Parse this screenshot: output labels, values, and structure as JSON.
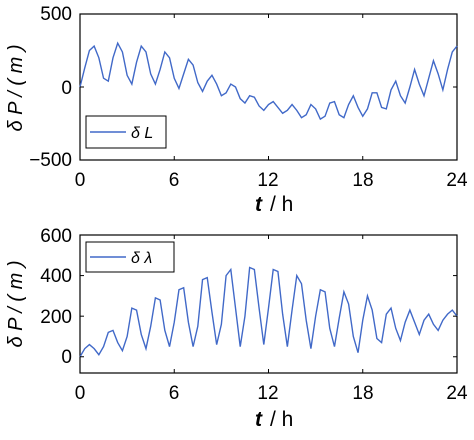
{
  "chart_data": [
    {
      "type": "line",
      "ylabel": "δ P / ( m )",
      "xlabel_t": "t",
      "xlabel_unit": "/ h",
      "xlim": [
        0,
        24
      ],
      "ylim": [
        -500,
        500
      ],
      "xticks": [
        "0",
        "6",
        "12",
        "18",
        "24"
      ],
      "yticks": [
        "-500",
        "0",
        "500"
      ],
      "legend_position": "lower-left",
      "series": [
        {
          "name": "δ L",
          "color": "#4169c8",
          "x": [
            0,
            0.3,
            0.6,
            0.9,
            1.2,
            1.5,
            1.8,
            2.1,
            2.4,
            2.7,
            3.0,
            3.3,
            3.6,
            3.9,
            4.2,
            4.5,
            4.8,
            5.1,
            5.4,
            5.7,
            6.0,
            6.3,
            6.6,
            6.9,
            7.2,
            7.5,
            7.8,
            8.1,
            8.4,
            8.7,
            9.0,
            9.3,
            9.6,
            9.9,
            10.2,
            10.5,
            10.8,
            11.1,
            11.4,
            11.7,
            12.0,
            12.3,
            12.6,
            12.9,
            13.2,
            13.5,
            13.8,
            14.1,
            14.4,
            14.7,
            15.0,
            15.3,
            15.6,
            15.9,
            16.2,
            16.5,
            16.8,
            17.1,
            17.4,
            17.7,
            18.0,
            18.3,
            18.6,
            18.9,
            19.2,
            19.5,
            19.8,
            20.1,
            20.4,
            20.7,
            21.0,
            21.3,
            21.6,
            21.9,
            22.2,
            22.5,
            22.8,
            23.1,
            23.4,
            23.7,
            24.0
          ],
          "values": [
            0,
            130,
            250,
            280,
            200,
            60,
            40,
            200,
            300,
            240,
            80,
            20,
            170,
            280,
            240,
            90,
            20,
            120,
            240,
            200,
            60,
            -10,
            90,
            190,
            150,
            30,
            -30,
            40,
            80,
            20,
            -60,
            -40,
            20,
            0,
            -80,
            -110,
            -60,
            -70,
            -130,
            -160,
            -120,
            -100,
            -140,
            -180,
            -160,
            -120,
            -160,
            -210,
            -190,
            -120,
            -150,
            -220,
            -200,
            -110,
            -100,
            -190,
            -210,
            -120,
            -60,
            -140,
            -200,
            -150,
            -40,
            -40,
            -140,
            -150,
            -20,
            40,
            -60,
            -110,
            0,
            120,
            20,
            -60,
            60,
            180,
            90,
            -20,
            120,
            240,
            280
          ]
        }
      ]
    },
    {
      "type": "line",
      "ylabel": "δ P / ( m )",
      "xlabel_t": "t",
      "xlabel_unit": "/ h",
      "xlim": [
        0,
        24
      ],
      "ylim": [
        -80,
        600
      ],
      "xticks": [
        "0",
        "6",
        "12",
        "18",
        "24"
      ],
      "yticks": [
        "0",
        "200",
        "400",
        "600"
      ],
      "legend_position": "top-left",
      "series": [
        {
          "name": "δ λ",
          "color": "#4169c8",
          "x": [
            0,
            0.3,
            0.6,
            0.9,
            1.2,
            1.5,
            1.8,
            2.1,
            2.4,
            2.7,
            3.0,
            3.3,
            3.6,
            3.9,
            4.2,
            4.5,
            4.8,
            5.1,
            5.4,
            5.7,
            6.0,
            6.3,
            6.6,
            6.9,
            7.2,
            7.5,
            7.8,
            8.1,
            8.4,
            8.7,
            9.0,
            9.3,
            9.6,
            9.9,
            10.2,
            10.5,
            10.8,
            11.1,
            11.4,
            11.7,
            12.0,
            12.3,
            12.6,
            12.9,
            13.2,
            13.5,
            13.8,
            14.1,
            14.4,
            14.7,
            15.0,
            15.3,
            15.6,
            15.9,
            16.2,
            16.5,
            16.8,
            17.1,
            17.4,
            17.7,
            18.0,
            18.3,
            18.6,
            18.9,
            19.2,
            19.5,
            19.8,
            20.1,
            20.4,
            20.7,
            21.0,
            21.3,
            21.6,
            21.9,
            22.2,
            22.5,
            22.8,
            23.1,
            23.4,
            23.7,
            24.0
          ],
          "values": [
            0,
            40,
            60,
            40,
            10,
            50,
            120,
            130,
            70,
            30,
            100,
            240,
            230,
            110,
            40,
            150,
            290,
            280,
            130,
            50,
            170,
            330,
            340,
            170,
            50,
            150,
            380,
            390,
            220,
            60,
            160,
            400,
            430,
            240,
            50,
            200,
            440,
            430,
            240,
            60,
            240,
            430,
            420,
            210,
            50,
            230,
            400,
            360,
            180,
            40,
            200,
            330,
            320,
            140,
            50,
            190,
            320,
            260,
            100,
            20,
            180,
            300,
            230,
            90,
            70,
            210,
            240,
            140,
            80,
            170,
            230,
            170,
            110,
            180,
            210,
            160,
            130,
            180,
            210,
            230,
            200
          ]
        }
      ]
    }
  ]
}
